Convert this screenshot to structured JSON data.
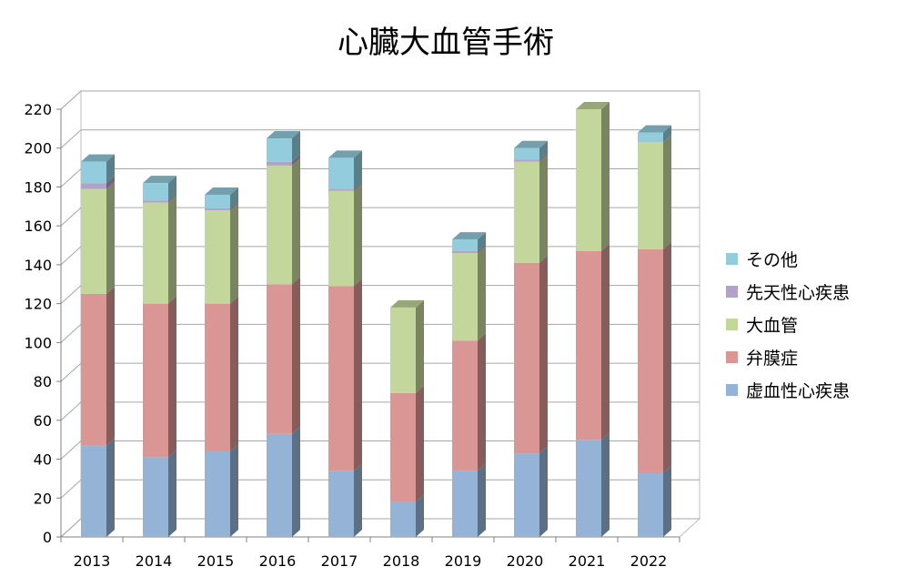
{
  "chart_data": {
    "type": "bar",
    "stacked": true,
    "style": "3d",
    "title": "心臓大血管手術",
    "xlabel": "",
    "ylabel": "",
    "categories": [
      "2013",
      "2014",
      "2015",
      "2016",
      "2017",
      "2018",
      "2019",
      "2020",
      "2021",
      "2022"
    ],
    "ylim": [
      0,
      220
    ],
    "yticks": [
      0,
      20,
      40,
      60,
      80,
      100,
      120,
      140,
      160,
      180,
      200,
      220
    ],
    "grid": true,
    "legend_position": "right",
    "series": [
      {
        "name": "虚血性心疾患",
        "color": "#95B3D7",
        "values": [
          47,
          41,
          44,
          53,
          34,
          18,
          34,
          43,
          50,
          33
        ]
      },
      {
        "name": "弁膜症",
        "color": "#D99694",
        "values": [
          78,
          79,
          76,
          77,
          95,
          56,
          67,
          98,
          97,
          115
        ]
      },
      {
        "name": "大血管",
        "color": "#C3D69B",
        "values": [
          54,
          52,
          48,
          61,
          49,
          44,
          45,
          52,
          73,
          55
        ]
      },
      {
        "name": "先天性心疾患",
        "color": "#B3A2C7",
        "values": [
          3,
          1,
          1,
          2,
          1,
          0,
          1,
          1,
          0,
          0
        ]
      },
      {
        "name": "その他",
        "color": "#93CDDD",
        "values": [
          11,
          9,
          7,
          12,
          16,
          0,
          6,
          6,
          0,
          5
        ]
      }
    ]
  }
}
